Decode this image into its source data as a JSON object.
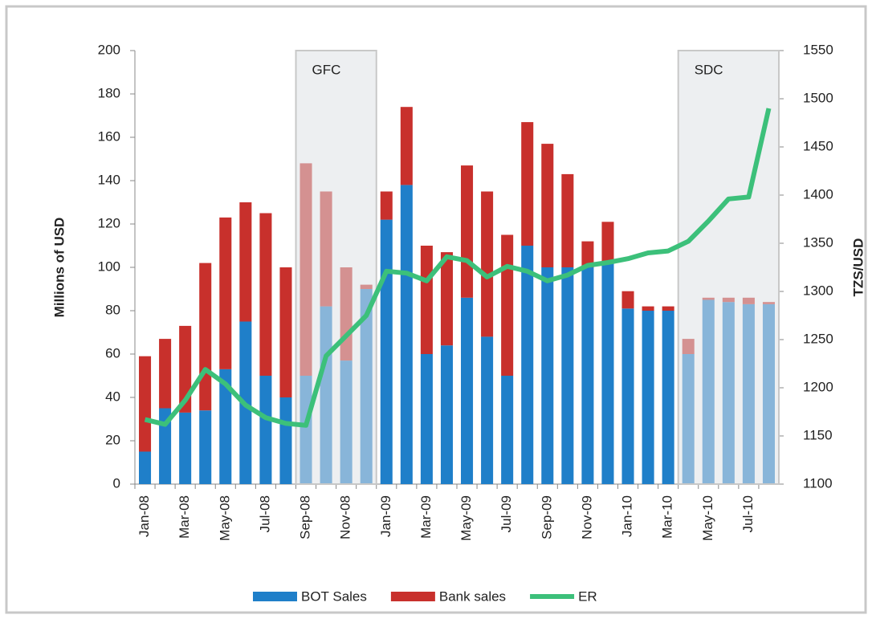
{
  "chart_data": {
    "type": "bar",
    "categories": [
      "Jan-08",
      null,
      "Mar-08",
      null,
      "May-08",
      null,
      "Jul-08",
      null,
      "Sep-08",
      null,
      "Nov-08",
      null,
      "Jan-09",
      null,
      "Mar-09",
      null,
      "May-09",
      null,
      "Jul-09",
      null,
      "Sep-09",
      null,
      "Nov-09",
      null,
      "Jan-10",
      null,
      "Mar-10",
      null,
      "May-10",
      null,
      "Jul-10",
      null
    ],
    "series": [
      {
        "name": "BOT Sales",
        "type": "bar",
        "color": "#1f7fc9",
        "values": [
          15,
          35,
          33,
          34,
          53,
          75,
          50,
          40,
          50,
          82,
          57,
          90,
          122,
          138,
          60,
          64,
          86,
          68,
          50,
          110,
          100,
          100,
          100,
          102,
          81,
          80,
          80,
          60,
          85,
          84,
          83,
          83
        ]
      },
      {
        "name": "Bank sales",
        "type": "bar",
        "color": "#c8302c",
        "values": [
          44,
          32,
          40,
          68,
          70,
          55,
          75,
          60,
          98,
          53,
          43,
          2,
          13,
          36,
          50,
          43,
          61,
          67,
          65,
          57,
          57,
          43,
          12,
          19,
          8,
          2,
          2,
          7,
          1,
          2,
          3,
          1
        ]
      },
      {
        "name": "ER",
        "type": "line",
        "axis": "y2",
        "color": "#3cc07a",
        "values": [
          1167,
          1162,
          1187,
          1219,
          1204,
          1182,
          1169,
          1163,
          1161,
          1233,
          1254,
          1275,
          1321,
          1319,
          1311,
          1336,
          1332,
          1315,
          1326,
          1321,
          1311,
          1317,
          1327,
          1330,
          1334,
          1340,
          1342,
          1352,
          1373,
          1396,
          1398,
          1490
        ]
      }
    ],
    "ylabel": "Millions of USD",
    "y2label": "TZS/USD",
    "ylim": [
      0,
      200
    ],
    "yticks": [
      0,
      20,
      40,
      60,
      80,
      100,
      120,
      140,
      160,
      180,
      200
    ],
    "y2lim": [
      1100,
      1550
    ],
    "y2ticks": [
      1100,
      1150,
      1200,
      1250,
      1300,
      1350,
      1400,
      1450,
      1500,
      1550
    ],
    "stacked": true,
    "legend": "bottom",
    "shaded": [
      {
        "label": "GFC",
        "span": [
          8,
          12
        ]
      },
      {
        "label": "SDC",
        "span": [
          27,
          32
        ]
      }
    ]
  }
}
